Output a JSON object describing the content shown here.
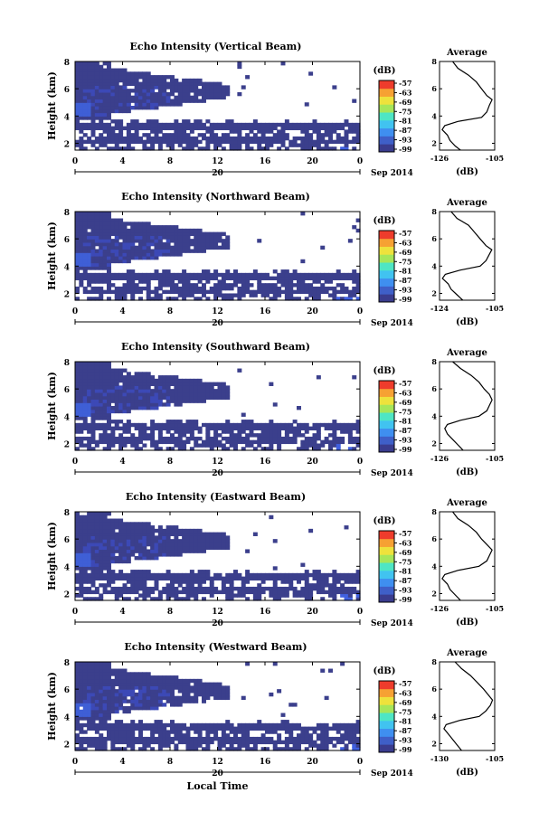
{
  "date_label": "Sep 2014",
  "day_label": "20",
  "xaxis_label": "Local Time",
  "colors": {
    "background_echo": "#3b3f8c",
    "colorbar": [
      "#3a3c8e",
      "#3f5fc8",
      "#3f8ff0",
      "#41c3f0",
      "#4ee6c4",
      "#a6e65a",
      "#eee23c",
      "#f6a133",
      "#ee3c2c"
    ]
  },
  "chart_data": [
    {
      "type": "heatmap",
      "title": "Echo Intensity (Vertical Beam)",
      "xlabel": "",
      "ylabel": "Height (km)",
      "xlim": [
        0,
        24
      ],
      "ylim": [
        1.5,
        8
      ],
      "xticks": [
        "0",
        "4",
        "8",
        "12",
        "16",
        "20",
        "0"
      ],
      "yticks": [
        "2",
        "4",
        "6",
        "8"
      ],
      "colorbar": {
        "unit": "(dB)",
        "ticks": [
          "-57",
          "-63",
          "-69",
          "-75",
          "-81",
          "-87",
          "-93",
          "-99"
        ]
      },
      "profile": {
        "title": "Average",
        "xlabel": "(dB)",
        "xlim": [
          -126,
          -105
        ],
        "xticks": [
          "-126",
          "-105"
        ],
        "yticks": [
          "2",
          "4",
          "6",
          "8"
        ],
        "points": [
          [
            -118,
            1.5
          ],
          [
            -120,
            1.8
          ],
          [
            -122,
            2.2
          ],
          [
            -123,
            2.6
          ],
          [
            -125,
            3.0
          ],
          [
            -124,
            3.3
          ],
          [
            -119,
            3.6
          ],
          [
            -110,
            3.9
          ],
          [
            -108,
            4.3
          ],
          [
            -107,
            4.8
          ],
          [
            -106,
            5.2
          ],
          [
            -108,
            5.5
          ],
          [
            -110,
            6.0
          ],
          [
            -112,
            6.5
          ],
          [
            -115,
            7.0
          ],
          [
            -119,
            7.5
          ],
          [
            -121,
            8.0
          ]
        ]
      }
    },
    {
      "type": "heatmap",
      "title": "Echo Intensity (Northward Beam)",
      "xlabel": "",
      "ylabel": "Height (km)",
      "xlim": [
        0,
        24
      ],
      "ylim": [
        1.5,
        8
      ],
      "xticks": [
        "0",
        "4",
        "8",
        "12",
        "16",
        "20",
        "0"
      ],
      "yticks": [
        "2",
        "4",
        "6",
        "8"
      ],
      "colorbar": {
        "unit": "(dB)",
        "ticks": [
          "-57",
          "-63",
          "-69",
          "-75",
          "-81",
          "-87",
          "-93",
          "-99"
        ]
      },
      "profile": {
        "title": "Average",
        "xlabel": "(dB)",
        "xlim": [
          -124,
          -105
        ],
        "xticks": [
          "-124",
          "-105"
        ],
        "yticks": [
          "2",
          "4",
          "6",
          "8"
        ],
        "points": [
          [
            -116,
            1.5
          ],
          [
            -118,
            1.9
          ],
          [
            -120,
            2.3
          ],
          [
            -121,
            2.7
          ],
          [
            -123,
            3.1
          ],
          [
            -122,
            3.4
          ],
          [
            -117,
            3.7
          ],
          [
            -110,
            4.0
          ],
          [
            -108,
            4.4
          ],
          [
            -107,
            4.8
          ],
          [
            -106,
            5.2
          ],
          [
            -108,
            5.5
          ],
          [
            -110,
            6.0
          ],
          [
            -112,
            6.5
          ],
          [
            -114,
            7.0
          ],
          [
            -118,
            7.5
          ],
          [
            -120,
            8.0
          ]
        ]
      }
    },
    {
      "type": "heatmap",
      "title": "Echo Intensity (Southward Beam)",
      "xlabel": "",
      "ylabel": "Height (km)",
      "xlim": [
        0,
        24
      ],
      "ylim": [
        1.5,
        8
      ],
      "xticks": [
        "0",
        "4",
        "8",
        "12",
        "16",
        "20",
        "0"
      ],
      "yticks": [
        "2",
        "4",
        "6",
        "8"
      ],
      "colorbar": {
        "unit": "(dB)",
        "ticks": [
          "-57",
          "-63",
          "-69",
          "-75",
          "-81",
          "-87",
          "-93",
          "-99"
        ]
      },
      "profile": {
        "title": "Average",
        "xlabel": "(dB)",
        "xlim": [
          -126,
          -105
        ],
        "xticks": [
          "-126",
          "-105"
        ],
        "yticks": [
          "2",
          "4",
          "6",
          "8"
        ],
        "points": [
          [
            -117,
            1.5
          ],
          [
            -119,
            1.9
          ],
          [
            -121,
            2.3
          ],
          [
            -123,
            2.7
          ],
          [
            -124,
            3.1
          ],
          [
            -123,
            3.4
          ],
          [
            -118,
            3.7
          ],
          [
            -111,
            4.0
          ],
          [
            -108,
            4.4
          ],
          [
            -107,
            4.8
          ],
          [
            -106,
            5.2
          ],
          [
            -107,
            5.6
          ],
          [
            -109,
            6.0
          ],
          [
            -111,
            6.5
          ],
          [
            -114,
            7.0
          ],
          [
            -118,
            7.5
          ],
          [
            -121,
            8.0
          ]
        ]
      }
    },
    {
      "type": "heatmap",
      "title": "Echo Intensity (Eastward Beam)",
      "xlabel": "",
      "ylabel": "Height (km)",
      "xlim": [
        0,
        24
      ],
      "ylim": [
        1.5,
        8
      ],
      "xticks": [
        "0",
        "4",
        "8",
        "12",
        "16",
        "20",
        "0"
      ],
      "yticks": [
        "2",
        "4",
        "6",
        "8"
      ],
      "colorbar": {
        "unit": "(dB)",
        "ticks": [
          "-57",
          "-63",
          "-69",
          "-75",
          "-81",
          "-87",
          "-93",
          "-99"
        ]
      },
      "profile": {
        "title": "Average",
        "xlabel": "(dB)",
        "xlim": [
          -126,
          -105
        ],
        "xticks": [
          "-126",
          "-105"
        ],
        "yticks": [
          "2",
          "4",
          "6",
          "8"
        ],
        "points": [
          [
            -118,
            1.5
          ],
          [
            -120,
            1.9
          ],
          [
            -122,
            2.3
          ],
          [
            -123,
            2.7
          ],
          [
            -125,
            3.1
          ],
          [
            -124,
            3.4
          ],
          [
            -119,
            3.7
          ],
          [
            -111,
            4.0
          ],
          [
            -108,
            4.4
          ],
          [
            -107,
            4.8
          ],
          [
            -106,
            5.2
          ],
          [
            -108,
            5.6
          ],
          [
            -110,
            6.0
          ],
          [
            -112,
            6.5
          ],
          [
            -115,
            7.0
          ],
          [
            -119,
            7.5
          ],
          [
            -121,
            8.0
          ]
        ]
      }
    },
    {
      "type": "heatmap",
      "title": "Echo Intensity (Westward Beam)",
      "xlabel": "Local Time",
      "ylabel": "Height (km)",
      "xlim": [
        0,
        24
      ],
      "ylim": [
        1.5,
        8
      ],
      "xticks": [
        "0",
        "4",
        "8",
        "12",
        "16",
        "20",
        "0"
      ],
      "yticks": [
        "2",
        "4",
        "6",
        "8"
      ],
      "colorbar": {
        "unit": "(dB)",
        "ticks": [
          "-57",
          "-63",
          "-69",
          "-75",
          "-81",
          "-87",
          "-93",
          "-99"
        ]
      },
      "profile": {
        "title": "Average",
        "xlabel": "(dB)",
        "xlim": [
          -130,
          -105
        ],
        "xticks": [
          "-130",
          "-105"
        ],
        "yticks": [
          "2",
          "4",
          "6",
          "8"
        ],
        "points": [
          [
            -120,
            1.5
          ],
          [
            -122,
            1.9
          ],
          [
            -124,
            2.3
          ],
          [
            -126,
            2.7
          ],
          [
            -128,
            3.1
          ],
          [
            -127,
            3.4
          ],
          [
            -121,
            3.7
          ],
          [
            -112,
            4.0
          ],
          [
            -109,
            4.4
          ],
          [
            -107,
            4.8
          ],
          [
            -106,
            5.2
          ],
          [
            -108,
            5.6
          ],
          [
            -110,
            6.0
          ],
          [
            -113,
            6.5
          ],
          [
            -116,
            7.0
          ],
          [
            -120,
            7.5
          ],
          [
            -123,
            8.0
          ]
        ]
      }
    }
  ]
}
